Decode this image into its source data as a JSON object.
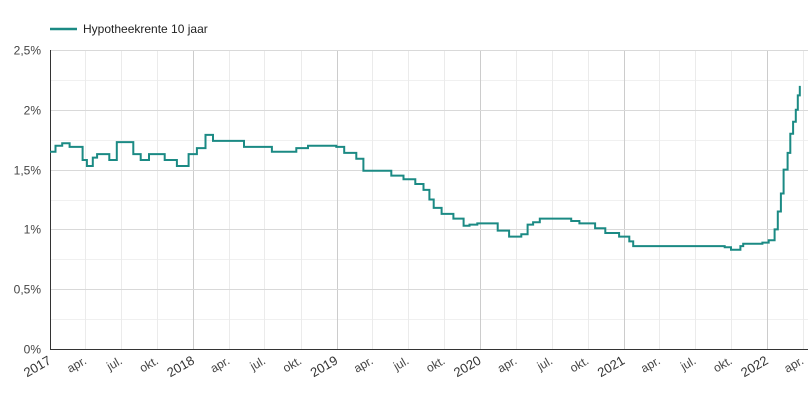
{
  "chart_data": {
    "type": "line",
    "legend_position": "top-left",
    "grid": true,
    "series": [
      {
        "name": "Hypotheekrente 10 jaar",
        "color": "#1b8a84",
        "points": [
          [
            "2017-01-01",
            1.65
          ],
          [
            "2017-01-15",
            1.7
          ],
          [
            "2017-02-01",
            1.72
          ],
          [
            "2017-02-20",
            1.69
          ],
          [
            "2017-03-25",
            1.58
          ],
          [
            "2017-04-05",
            1.53
          ],
          [
            "2017-04-20",
            1.6
          ],
          [
            "2017-05-01",
            1.63
          ],
          [
            "2017-06-01",
            1.58
          ],
          [
            "2017-06-20",
            1.73
          ],
          [
            "2017-08-01",
            1.63
          ],
          [
            "2017-08-20",
            1.58
          ],
          [
            "2017-09-10",
            1.63
          ],
          [
            "2017-10-20",
            1.58
          ],
          [
            "2017-11-20",
            1.53
          ],
          [
            "2017-12-20",
            1.63
          ],
          [
            "2018-01-10",
            1.68
          ],
          [
            "2018-02-01",
            1.79
          ],
          [
            "2018-02-20",
            1.74
          ],
          [
            "2018-05-10",
            1.69
          ],
          [
            "2018-06-10",
            1.69
          ],
          [
            "2018-07-20",
            1.65
          ],
          [
            "2018-09-20",
            1.68
          ],
          [
            "2018-10-20",
            1.7
          ],
          [
            "2018-12-31",
            1.69
          ],
          [
            "2019-01-20",
            1.64
          ],
          [
            "2019-02-20",
            1.59
          ],
          [
            "2019-03-10",
            1.49
          ],
          [
            "2019-05-20",
            1.45
          ],
          [
            "2019-06-20",
            1.42
          ],
          [
            "2019-07-20",
            1.38
          ],
          [
            "2019-08-10",
            1.33
          ],
          [
            "2019-08-25",
            1.25
          ],
          [
            "2019-09-05",
            1.18
          ],
          [
            "2019-09-25",
            1.13
          ],
          [
            "2019-10-25",
            1.09
          ],
          [
            "2019-11-20",
            1.03
          ],
          [
            "2019-12-05",
            1.04
          ],
          [
            "2019-12-25",
            1.05
          ],
          [
            "2020-02-15",
            0.99
          ],
          [
            "2020-03-15",
            0.94
          ],
          [
            "2020-04-15",
            0.96
          ],
          [
            "2020-05-01",
            1.04
          ],
          [
            "2020-05-15",
            1.06
          ],
          [
            "2020-06-01",
            1.09
          ],
          [
            "2020-08-20",
            1.07
          ],
          [
            "2020-09-10",
            1.05
          ],
          [
            "2020-10-20",
            1.01
          ],
          [
            "2020-11-15",
            0.97
          ],
          [
            "2020-12-20",
            0.94
          ],
          [
            "2021-01-15",
            0.9
          ],
          [
            "2021-01-25",
            0.86
          ],
          [
            "2021-09-15",
            0.85
          ],
          [
            "2021-10-01",
            0.83
          ],
          [
            "2021-10-25",
            0.86
          ],
          [
            "2021-11-01",
            0.88
          ],
          [
            "2021-12-20",
            0.89
          ],
          [
            "2022-01-05",
            0.91
          ],
          [
            "2022-01-20",
            1.0
          ],
          [
            "2022-01-28",
            1.15
          ],
          [
            "2022-02-05",
            1.3
          ],
          [
            "2022-02-12",
            1.5
          ],
          [
            "2022-02-22",
            1.64
          ],
          [
            "2022-03-01",
            1.8
          ],
          [
            "2022-03-08",
            1.9
          ],
          [
            "2022-03-15",
            2.0
          ],
          [
            "2022-03-20",
            2.12
          ],
          [
            "2022-03-25",
            2.2
          ]
        ]
      }
    ],
    "x_range": [
      "2017-01-01",
      "2022-04-15"
    ],
    "y_range": [
      0,
      2.5
    ],
    "y_ticks": [
      {
        "value": 0,
        "label": "0%"
      },
      {
        "value": 0.5,
        "label": "0,5%"
      },
      {
        "value": 1,
        "label": "1%"
      },
      {
        "value": 1.5,
        "label": "1,5%"
      },
      {
        "value": 2,
        "label": "2%"
      },
      {
        "value": 2.5,
        "label": "2,5%"
      }
    ],
    "x_ticks": [
      {
        "date": "2017-01-01",
        "label": "2017",
        "major": true
      },
      {
        "date": "2017-04-01",
        "label": "apr.",
        "major": false
      },
      {
        "date": "2017-07-01",
        "label": "jul.",
        "major": false
      },
      {
        "date": "2017-10-01",
        "label": "okt.",
        "major": false
      },
      {
        "date": "2018-01-01",
        "label": "2018",
        "major": true
      },
      {
        "date": "2018-04-01",
        "label": "apr.",
        "major": false
      },
      {
        "date": "2018-07-01",
        "label": "jul.",
        "major": false
      },
      {
        "date": "2018-10-01",
        "label": "okt.",
        "major": false
      },
      {
        "date": "2019-01-01",
        "label": "2019",
        "major": true
      },
      {
        "date": "2019-04-01",
        "label": "apr.",
        "major": false
      },
      {
        "date": "2019-07-01",
        "label": "jul.",
        "major": false
      },
      {
        "date": "2019-10-01",
        "label": "okt.",
        "major": false
      },
      {
        "date": "2020-01-01",
        "label": "2020",
        "major": true
      },
      {
        "date": "2020-04-01",
        "label": "apr.",
        "major": false
      },
      {
        "date": "2020-07-01",
        "label": "jul.",
        "major": false
      },
      {
        "date": "2020-10-01",
        "label": "okt.",
        "major": false
      },
      {
        "date": "2021-01-01",
        "label": "2021",
        "major": true
      },
      {
        "date": "2021-04-01",
        "label": "apr.",
        "major": false
      },
      {
        "date": "2021-07-01",
        "label": "jul.",
        "major": false
      },
      {
        "date": "2021-10-01",
        "label": "okt.",
        "major": false
      },
      {
        "date": "2022-01-01",
        "label": "2022",
        "major": true
      },
      {
        "date": "2022-04-01",
        "label": "apr.",
        "major": false
      }
    ]
  }
}
